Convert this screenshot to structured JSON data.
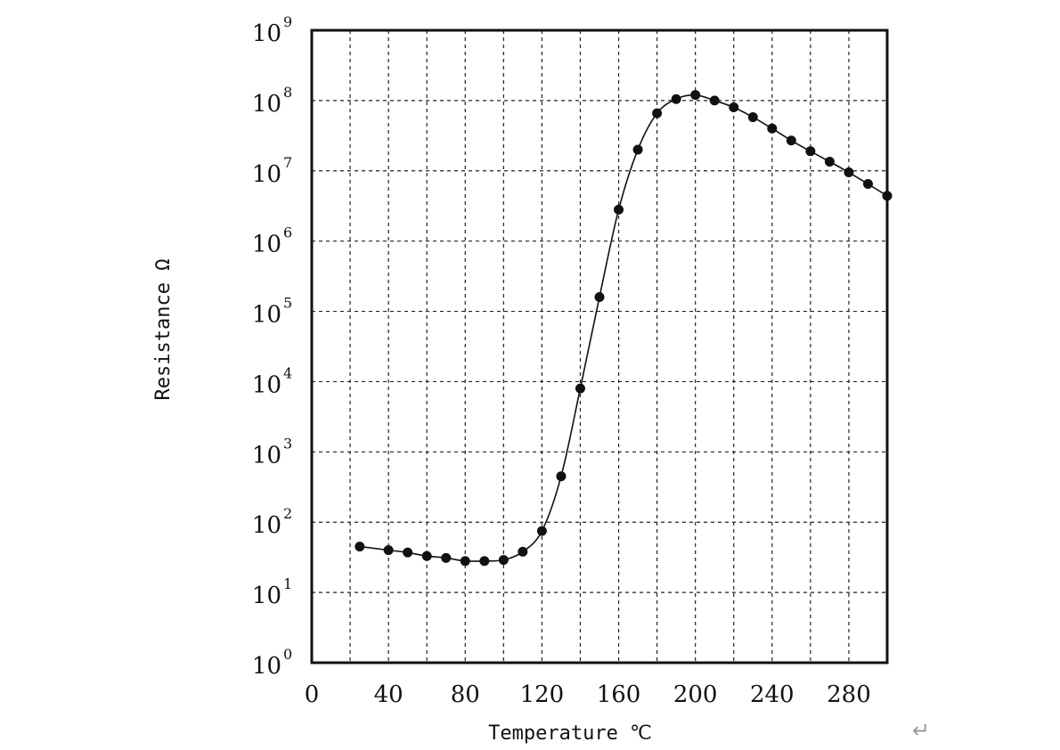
{
  "chart_data": {
    "type": "scatter",
    "title": "",
    "xlabel": "Temperature ℃",
    "ylabel": "Resistance Ω",
    "xlim": [
      0,
      300
    ],
    "ylim_exponent": [
      0,
      9
    ],
    "yscale": "log",
    "grid": true,
    "grid_style": "dashed",
    "x_ticks": [
      0,
      40,
      80,
      120,
      160,
      200,
      240,
      280
    ],
    "x_tick_labels": [
      "0",
      "40",
      "80",
      "120",
      "160",
      "200",
      "240",
      "280"
    ],
    "y_tick_base": "10",
    "y_tick_exponents": [
      "0",
      "1",
      "2",
      "3",
      "4",
      "5",
      "6",
      "7",
      "8",
      "9"
    ],
    "series": [
      {
        "marker": "filled-circle",
        "line": "smooth",
        "color": "#111111",
        "x": [
          25,
          40,
          50,
          60,
          70,
          80,
          90,
          100,
          110,
          120,
          130,
          140,
          150,
          160,
          170,
          180,
          190,
          200,
          210,
          220,
          230,
          240,
          250,
          260,
          270,
          280,
          290,
          300
        ],
        "y": [
          45,
          40,
          37,
          33,
          31,
          28,
          28,
          29,
          38,
          75,
          450,
          8000,
          160000,
          2800000,
          20000000,
          66000000,
          105000000,
          120000000,
          100000000,
          80000000,
          58000000,
          40000000,
          27000000,
          19000000,
          13500000,
          9500000,
          6500000,
          4400000
        ]
      }
    ]
  },
  "misc": {
    "return_mark": "↵"
  }
}
